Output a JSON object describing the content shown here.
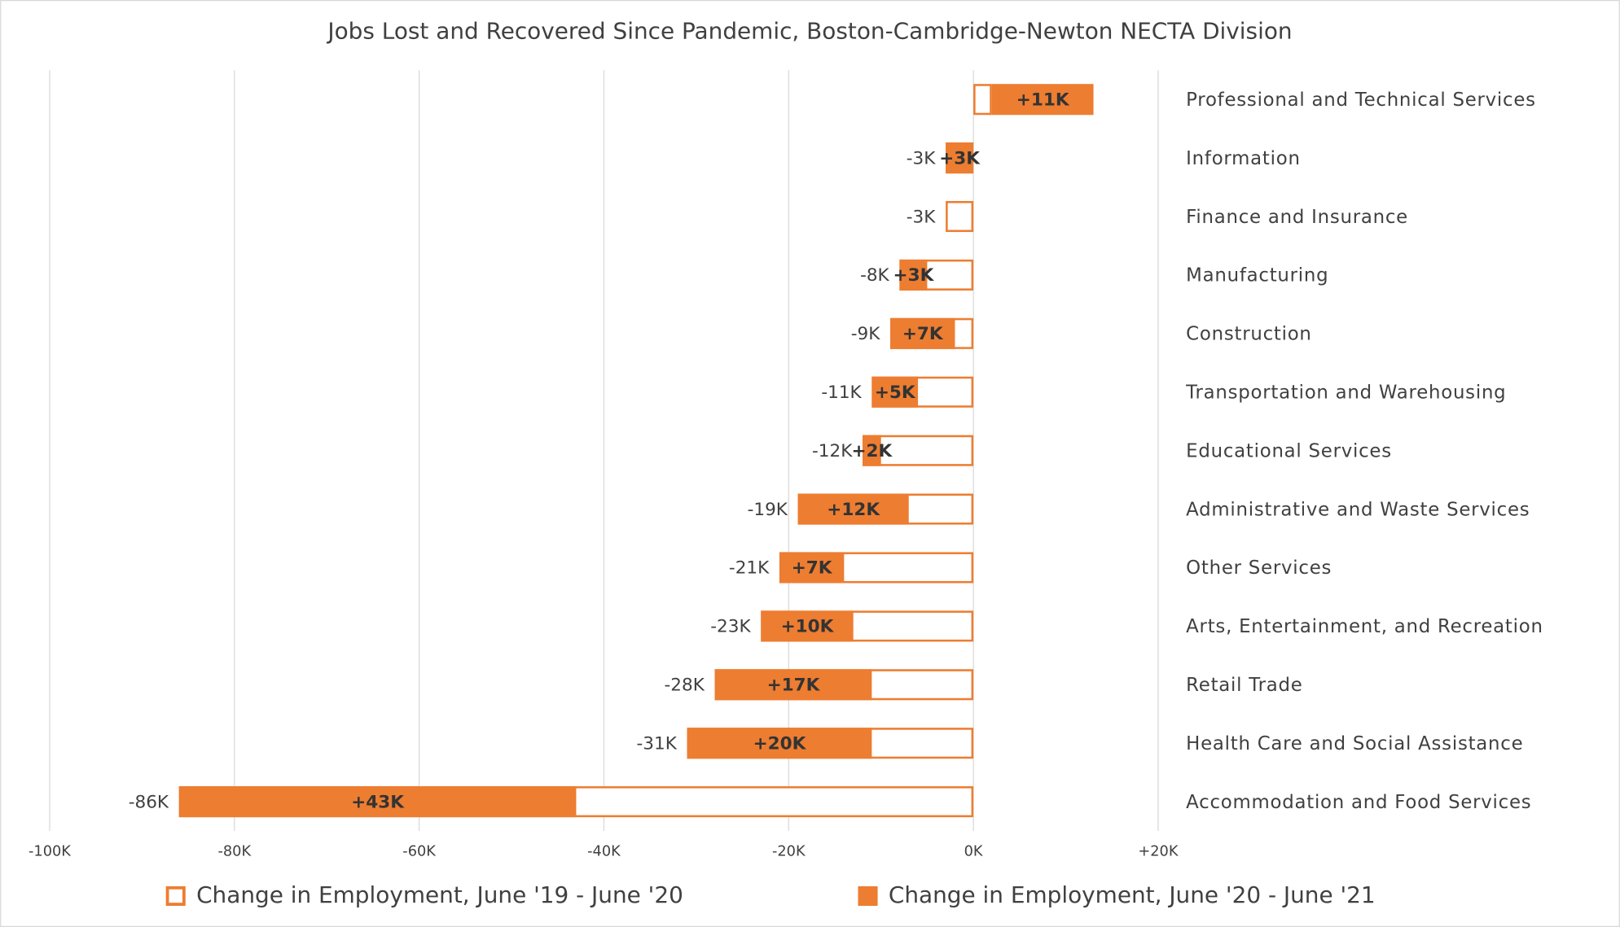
{
  "chart_data": {
    "type": "bar",
    "orientation": "horizontal",
    "title": "Jobs Lost and Recovered Since Pandemic, Boston-Cambridge-Newton NECTA Division",
    "categories": [
      "Professional and Technical Services",
      "Information",
      "Finance and Insurance",
      "Manufacturing",
      "Construction",
      "Transportation and Warehousing",
      "Educational Services",
      "Administrative and Waste Services",
      "Other Services",
      "Arts, Entertainment, and Recreation",
      "Retail Trade",
      "Health Care and Social Assistance",
      "Accommodation and Food Services"
    ],
    "series": [
      {
        "name": "Change in Employment, June '19 - June '20",
        "color": "#ed7d31",
        "style": "outline",
        "values": [
          2,
          -3,
          -3,
          -8,
          -9,
          -11,
          -12,
          -19,
          -21,
          -23,
          -28,
          -31,
          -86
        ],
        "value_labels": [
          null,
          "-3K",
          "-3K",
          "-8K",
          "-9K",
          "-11K",
          "-12K",
          "-19K",
          "-21K",
          "-23K",
          "-28K",
          "-31K",
          "-86K"
        ]
      },
      {
        "name": "Change in Employment, June '20 - June '21",
        "color": "#ed7d31",
        "style": "filled",
        "values": [
          11,
          3,
          null,
          3,
          7,
          5,
          2,
          12,
          7,
          10,
          17,
          20,
          43
        ],
        "value_labels": [
          "+11K",
          "+3K",
          null,
          "+3K",
          "+7K",
          "+5K",
          "+2K",
          "+12K",
          "+7K",
          "+10K",
          "+17K",
          "+20K",
          "+43K"
        ]
      }
    ],
    "xlim": [
      -100,
      20
    ],
    "xticks": [
      {
        "value": -100,
        "label": "-100K"
      },
      {
        "value": -80,
        "label": "-80K"
      },
      {
        "value": -60,
        "label": "-60K"
      },
      {
        "value": -40,
        "label": "-40K"
      },
      {
        "value": -20,
        "label": "-20K"
      },
      {
        "value": 0,
        "label": "0K"
      },
      {
        "value": 20,
        "label": "+20K"
      }
    ],
    "grid": true,
    "legend": "bottom"
  }
}
